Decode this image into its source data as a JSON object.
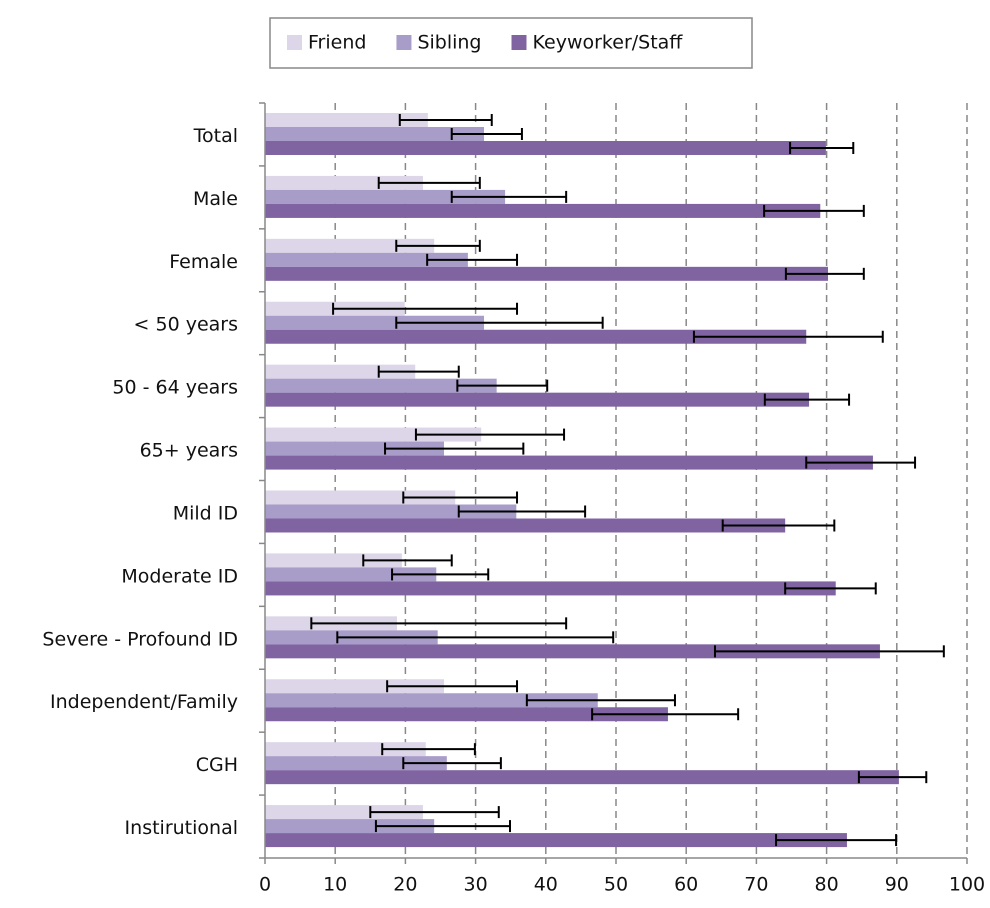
{
  "chart_data": {
    "type": "bar",
    "orientation": "horizontal",
    "categories": [
      "Total",
      "Male",
      "Female",
      "< 50 years",
      "50 - 64 years",
      "65+ years",
      "Mild ID",
      "Moderate ID",
      "Severe - Profound ID",
      "Independent/Family",
      "CGH",
      "Instirutional"
    ],
    "series": [
      {
        "name": "Friend",
        "color": "#dcd6e8",
        "values": [
          23.2,
          22.5,
          24.1,
          19.9,
          21.4,
          30.8,
          27.1,
          19.5,
          18.8,
          25.5,
          22.9,
          22.5
        ],
        "ci": [
          [
            19.2,
            32.3
          ],
          [
            16.2,
            30.6
          ],
          [
            18.7,
            30.6
          ],
          [
            9.7,
            35.9
          ],
          [
            16.2,
            27.6
          ],
          [
            21.5,
            42.6
          ],
          [
            19.7,
            35.9
          ],
          [
            14.0,
            26.6
          ],
          [
            6.6,
            42.9
          ],
          [
            17.4,
            35.9
          ],
          [
            16.7,
            29.9
          ],
          [
            15.0,
            33.3
          ]
        ]
      },
      {
        "name": "Sibling",
        "color": "#a89cc8",
        "values": [
          31.2,
          34.2,
          28.9,
          31.2,
          33.0,
          25.5,
          35.8,
          24.4,
          24.6,
          47.4,
          25.9,
          24.1
        ],
        "ci": [
          [
            26.6,
            36.6
          ],
          [
            26.6,
            42.9
          ],
          [
            23.1,
            35.9
          ],
          [
            18.7,
            48.1
          ],
          [
            27.4,
            40.2
          ],
          [
            17.1,
            36.8
          ],
          [
            27.6,
            45.6
          ],
          [
            18.1,
            31.8
          ],
          [
            10.3,
            49.6
          ],
          [
            37.3,
            58.4
          ],
          [
            19.7,
            33.6
          ],
          [
            15.8,
            34.9
          ]
        ]
      },
      {
        "name": "Keyworker/Staff",
        "color": "#8064a2",
        "values": [
          79.9,
          79.1,
          80.2,
          77.1,
          77.5,
          86.6,
          74.1,
          81.3,
          87.6,
          57.4,
          90.3,
          82.9
        ],
        "ci": [
          [
            74.8,
            83.8
          ],
          [
            71.1,
            85.3
          ],
          [
            74.2,
            85.3
          ],
          [
            61.1,
            88.0
          ],
          [
            71.2,
            83.2
          ],
          [
            77.1,
            92.6
          ],
          [
            65.2,
            81.1
          ],
          [
            74.1,
            87.0
          ],
          [
            64.1,
            96.7
          ],
          [
            46.6,
            67.4
          ],
          [
            84.6,
            94.2
          ],
          [
            72.8,
            89.9
          ]
        ]
      }
    ],
    "xlim": [
      0,
      100
    ],
    "xticks": [
      0,
      10,
      20,
      30,
      40,
      50,
      60,
      70,
      80,
      90,
      100
    ],
    "grid": true,
    "legend": "top"
  }
}
